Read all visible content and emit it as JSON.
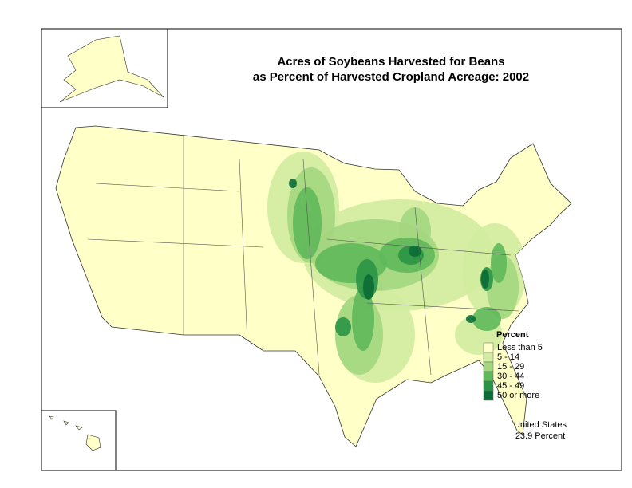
{
  "title": [
    "Acres of Soybeans Harvested for Beans",
    "as Percent of Harvested Cropland Acreage:  2002"
  ],
  "legend": {
    "title": "Percent",
    "items": [
      {
        "label": "Less than 5",
        "color": "#ffffc8"
      },
      {
        "label": "5 - 14",
        "color": "#d2eba0"
      },
      {
        "label": "15 - 29",
        "color": "#a3d67f"
      },
      {
        "label": "30 - 44",
        "color": "#5fb85a"
      },
      {
        "label": "45 - 49",
        "color": "#2a9345"
      },
      {
        "label": "50 or more",
        "color": "#0b6b35"
      }
    ]
  },
  "summary": {
    "region": "United States",
    "value": "23.9 Percent"
  }
}
